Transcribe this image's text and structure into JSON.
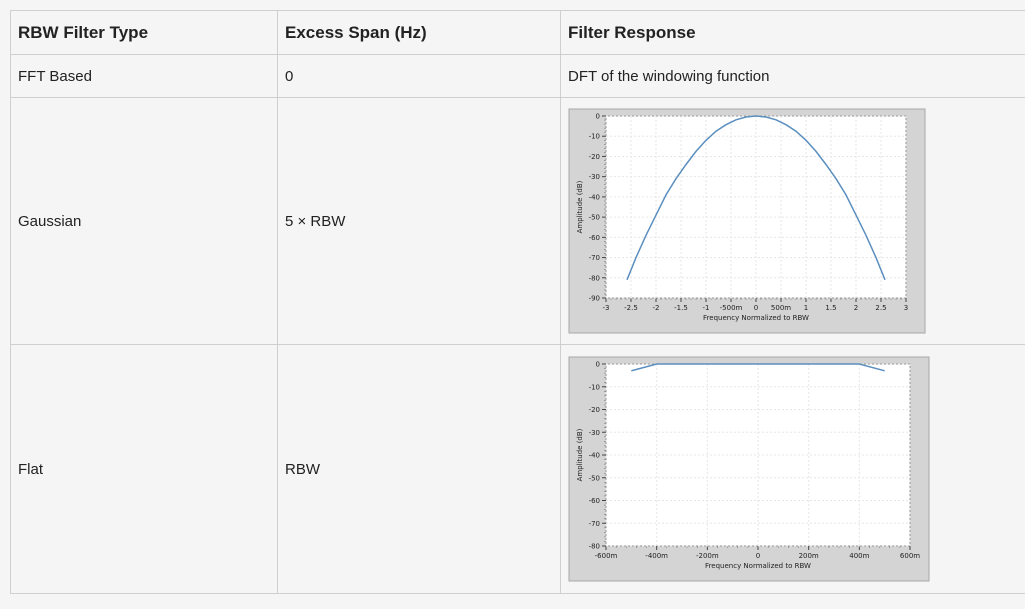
{
  "table": {
    "headers": [
      "RBW Filter Type",
      "Excess Span (Hz)",
      "Filter Response"
    ],
    "rows": [
      {
        "type": "FFT Based",
        "span": "0",
        "response": "DFT of the windowing function"
      },
      {
        "type": "Gaussian",
        "span": "5 × RBW",
        "response": ""
      },
      {
        "type": "Flat",
        "span": "RBW",
        "response": ""
      }
    ]
  },
  "chart_data": [
    {
      "type": "line",
      "xlabel": "Frequency Normalized to RBW",
      "ylabel": "Amplitude (dB)",
      "xlim": [
        -3,
        3
      ],
      "ylim": [
        -90,
        0
      ],
      "xticks": [
        "-3",
        "-2.5",
        "-2",
        "-1.5",
        "-1",
        "-500m",
        "0",
        "500m",
        "1",
        "1.5",
        "2",
        "2.5",
        "3"
      ],
      "yticks": [
        "0",
        "-10",
        "-20",
        "-30",
        "-40",
        "-50",
        "-60",
        "-70",
        "-80",
        "-90"
      ],
      "grid": true,
      "x": [
        -2.58,
        -2.4,
        -2.2,
        -2.0,
        -1.8,
        -1.6,
        -1.4,
        -1.2,
        -1.0,
        -0.8,
        -0.6,
        -0.4,
        -0.2,
        0,
        0.2,
        0.4,
        0.6,
        0.8,
        1.0,
        1.2,
        1.4,
        1.6,
        1.8,
        2.0,
        2.2,
        2.4,
        2.58
      ],
      "y": [
        -81,
        -70,
        -59,
        -49,
        -39,
        -31,
        -24,
        -17.5,
        -12,
        -7.5,
        -4.3,
        -1.9,
        -0.5,
        0,
        -0.5,
        -1.9,
        -4.3,
        -7.5,
        -12,
        -17.5,
        -24,
        -31,
        -39,
        -49,
        -59,
        -70,
        -81
      ],
      "color": "#5b8fbf"
    },
    {
      "type": "line",
      "xlabel": "Frequency Normalized to RBW",
      "ylabel": "Amplitude (dB)",
      "xlim": [
        -0.6,
        0.6
      ],
      "ylim": [
        -80,
        0
      ],
      "xticks": [
        "-600m",
        "-400m",
        "-200m",
        "0",
        "200m",
        "400m",
        "600m"
      ],
      "yticks": [
        "0",
        "-10",
        "-20",
        "-30",
        "-40",
        "-50",
        "-60",
        "-70",
        "-80"
      ],
      "grid": true,
      "x": [
        -0.5,
        -0.4,
        -0.3,
        -0.2,
        -0.1,
        0,
        0.1,
        0.2,
        0.3,
        0.4,
        0.5
      ],
      "y": [
        -3,
        0,
        0,
        0,
        0,
        0,
        0,
        0,
        0,
        0,
        -3
      ],
      "color": "#5b8fbf"
    }
  ]
}
